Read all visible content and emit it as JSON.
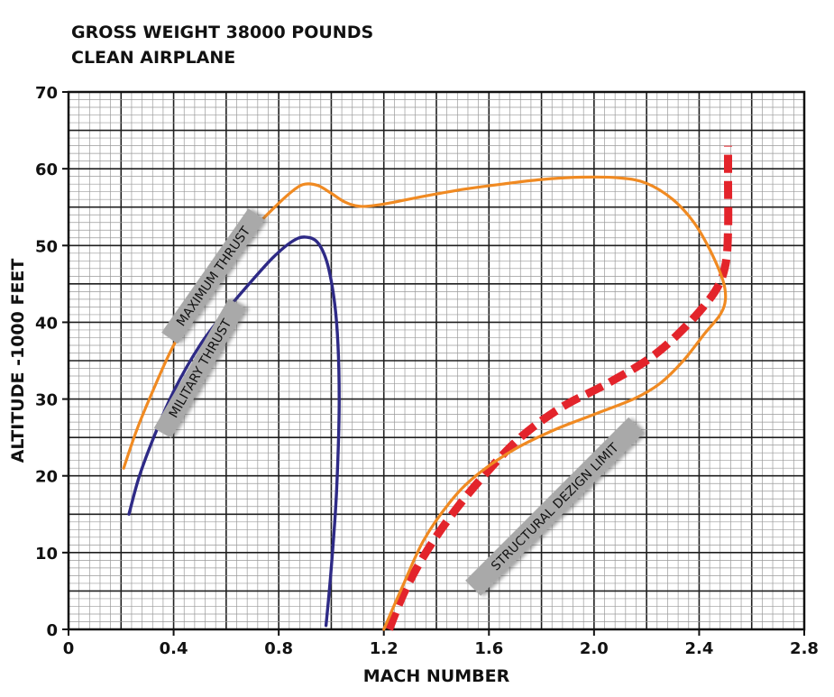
{
  "chart_data": {
    "type": "line",
    "title": "GROSS WEIGHT 38000 POUNDS",
    "subtitle": "CLEAN AIRPLANE",
    "xlabel": "MACH NUMBER",
    "ylabel": "ALTITUDE -1000 FEET",
    "xlim": [
      0,
      2.8
    ],
    "ylim": [
      0,
      70
    ],
    "x_ticks": [
      0,
      0.4,
      0.8,
      1.2,
      1.6,
      2.0,
      2.4,
      2.8
    ],
    "x_tick_labels": [
      "0",
      "0.4",
      "0.8",
      "1.2",
      "1.6",
      "2.0",
      "2.4",
      "2.8"
    ],
    "y_ticks": [
      0,
      10,
      20,
      30,
      40,
      50,
      60,
      70
    ],
    "y_tick_labels": [
      "0",
      "10",
      "20",
      "30",
      "40",
      "50",
      "60",
      "70"
    ],
    "grid": true,
    "series": [
      {
        "name": "MAXIMUM THRUST",
        "color": "#f08a22",
        "style": "solid",
        "points": [
          [
            0.21,
            21
          ],
          [
            0.26,
            26
          ],
          [
            0.32,
            31
          ],
          [
            0.4,
            37
          ],
          [
            0.5,
            42.5
          ],
          [
            0.6,
            47.5
          ],
          [
            0.7,
            52
          ],
          [
            0.8,
            55.5
          ],
          [
            0.86,
            57.3
          ],
          [
            0.9,
            58
          ],
          [
            0.95,
            57.8
          ],
          [
            1.0,
            56.8
          ],
          [
            1.05,
            55.7
          ],
          [
            1.11,
            55.1
          ],
          [
            1.2,
            55.4
          ],
          [
            1.35,
            56.4
          ],
          [
            1.5,
            57.3
          ],
          [
            1.65,
            58
          ],
          [
            1.8,
            58.6
          ],
          [
            1.95,
            58.9
          ],
          [
            2.1,
            58.8
          ],
          [
            2.2,
            58.1
          ],
          [
            2.3,
            56
          ],
          [
            2.38,
            53
          ],
          [
            2.44,
            49.5
          ],
          [
            2.49,
            45.5
          ],
          [
            2.5,
            43
          ],
          [
            2.48,
            41
          ],
          [
            2.42,
            38.5
          ],
          [
            2.34,
            35
          ],
          [
            2.25,
            32
          ],
          [
            2.15,
            30
          ],
          [
            2.0,
            28
          ],
          [
            1.85,
            26
          ],
          [
            1.7,
            23.5
          ],
          [
            1.55,
            20
          ],
          [
            1.45,
            16.5
          ],
          [
            1.35,
            11.5
          ],
          [
            1.27,
            5.5
          ],
          [
            1.2,
            0
          ]
        ]
      },
      {
        "name": "MILITARY THRUST",
        "color": "#2e2a86",
        "style": "solid",
        "points": [
          [
            0.23,
            15
          ],
          [
            0.27,
            20
          ],
          [
            0.33,
            25.5
          ],
          [
            0.4,
            31
          ],
          [
            0.5,
            37
          ],
          [
            0.6,
            41.5
          ],
          [
            0.7,
            45.5
          ],
          [
            0.78,
            48.5
          ],
          [
            0.85,
            50.5
          ],
          [
            0.9,
            51.1
          ],
          [
            0.95,
            50.3
          ],
          [
            0.99,
            47
          ],
          [
            1.02,
            40
          ],
          [
            1.03,
            30
          ],
          [
            1.02,
            18
          ],
          [
            1.0,
            8
          ],
          [
            0.98,
            0.5
          ]
        ]
      },
      {
        "name": "STRUCTURAL DEZIGN LIMIT",
        "color": "#e3242b",
        "style": "dashed",
        "points": [
          [
            1.22,
            0
          ],
          [
            1.28,
            5
          ],
          [
            1.36,
            10
          ],
          [
            1.46,
            15
          ],
          [
            1.58,
            20
          ],
          [
            1.72,
            25
          ],
          [
            1.88,
            29
          ],
          [
            2.05,
            32
          ],
          [
            2.22,
            35.5
          ],
          [
            2.35,
            39.5
          ],
          [
            2.46,
            44
          ],
          [
            2.5,
            47.5
          ],
          [
            2.51,
            52
          ],
          [
            2.51,
            58
          ],
          [
            2.51,
            63
          ]
        ]
      }
    ]
  }
}
